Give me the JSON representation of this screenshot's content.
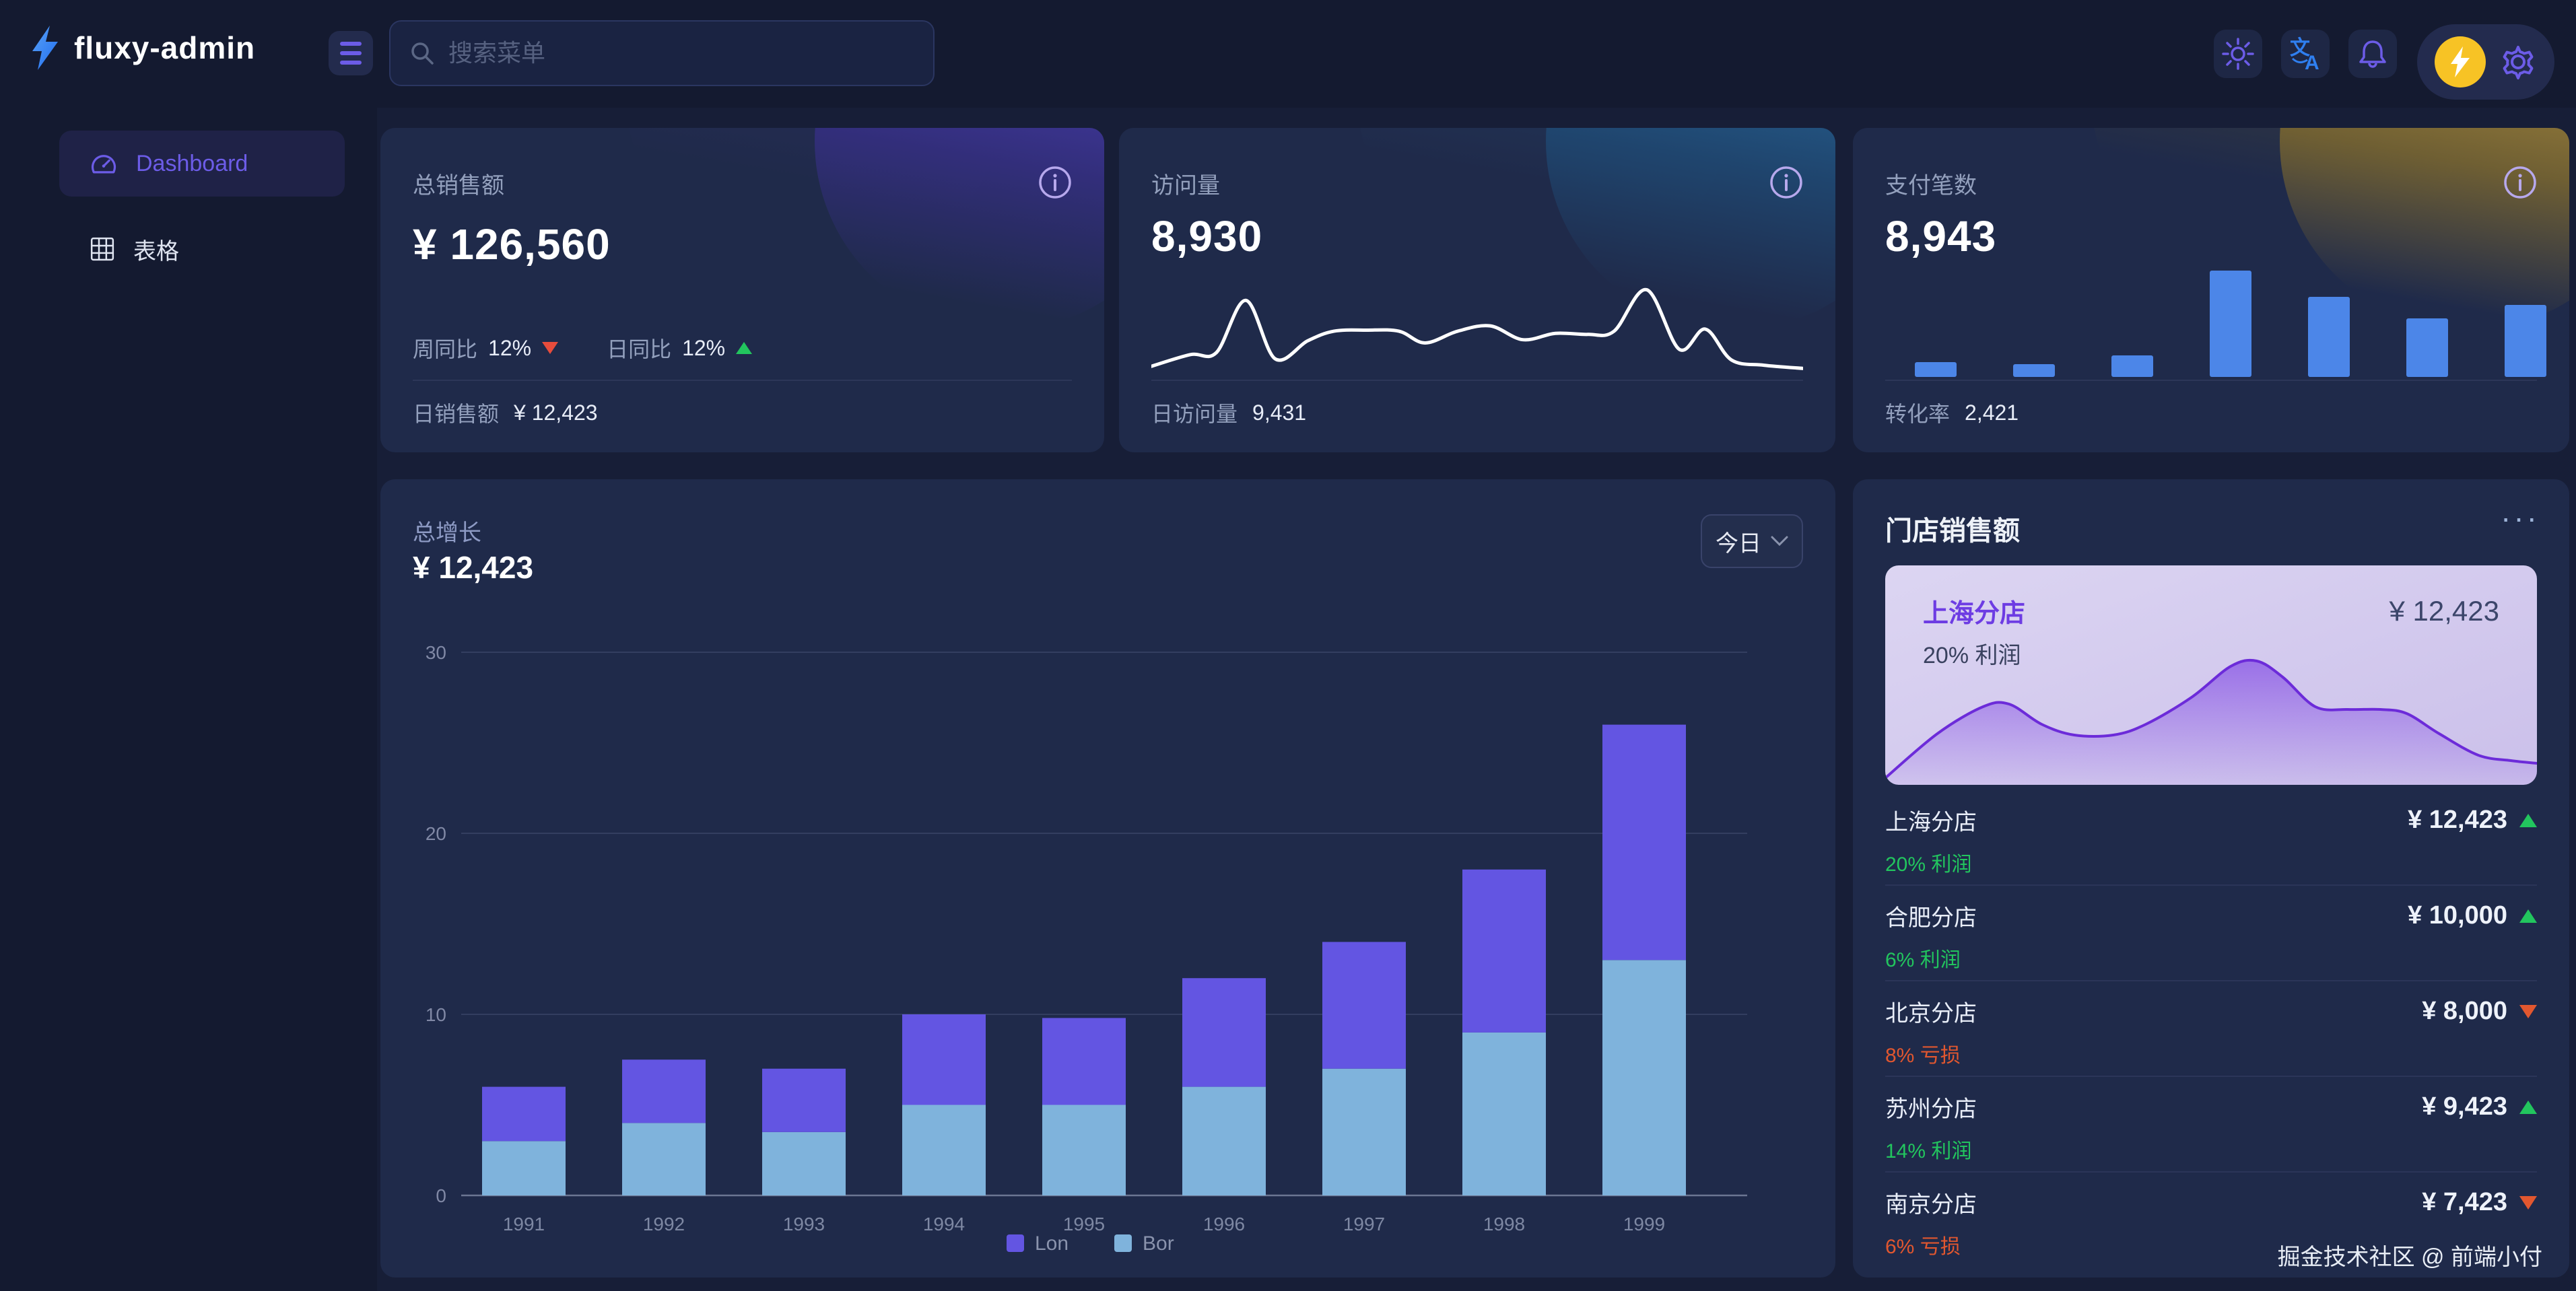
{
  "topbar": {
    "logo": "fluxy-admin",
    "search_placeholder": "搜索菜单"
  },
  "sidebar": {
    "items": [
      {
        "label": "Dashboard",
        "active": true
      },
      {
        "label": "表格",
        "active": false
      }
    ]
  },
  "stats": {
    "sales": {
      "label": "总销售额",
      "value": "¥ 126,560",
      "week_label": "周同比",
      "week_value": "12%",
      "week_trend": "down",
      "day_label": "日同比",
      "day_value": "12%",
      "day_trend": "up",
      "footer_label": "日销售额",
      "footer_value": "¥ 12,423"
    },
    "visits": {
      "label": "访问量",
      "value": "8,930",
      "footer_label": "日访问量",
      "footer_value": "9,431"
    },
    "payments": {
      "label": "支付笔数",
      "value": "8,943",
      "footer_label": "转化率",
      "footer_value": "2,421"
    }
  },
  "growth_chart": {
    "title": "总增长",
    "value": "¥ 12,423",
    "range_label": "今日"
  },
  "stores": {
    "title": "门店销售额",
    "more": "···",
    "highlight": {
      "name": "上海分店",
      "value": "¥ 12,423",
      "pct": "20% 利润"
    },
    "list": [
      {
        "name": "上海分店",
        "value": "¥ 12,423",
        "pct": "20% 利润",
        "trend": "up"
      },
      {
        "name": "合肥分店",
        "value": "¥ 10,000",
        "pct": "6% 利润",
        "trend": "up"
      },
      {
        "name": "北京分店",
        "value": "¥ 8,000",
        "pct": "8% 亏损",
        "trend": "down"
      },
      {
        "name": "苏州分店",
        "value": "¥ 9,423",
        "pct": "14% 利润",
        "trend": "up"
      },
      {
        "name": "南京分店",
        "value": "¥ 7,423",
        "pct": "6% 亏损",
        "trend": "down"
      }
    ]
  },
  "footer": {
    "credit": "掘金技术社区 @ 前端小付"
  },
  "colors": {
    "accent": "#6c5ce7",
    "logo_blue": "#2f7ff0",
    "green": "#22c55e",
    "red_stat": "#e74c3c",
    "red_store": "#e2572f",
    "lon_purple": "#6355e2",
    "bor_blue": "#7fb3dc",
    "mini_bar_blue": "#4c86e8",
    "avatar_yellow": "#f7c325",
    "card_bg": "#1f2a4a",
    "page_bg": "#171e37"
  },
  "chart_data": [
    {
      "id": "growth",
      "type": "bar",
      "stacked": true,
      "title": "总增长",
      "categories": [
        "1991",
        "1992",
        "1993",
        "1994",
        "1995",
        "1996",
        "1997",
        "1998",
        "1999"
      ],
      "series": [
        {
          "name": "Lon",
          "color": "#6355e2",
          "values": [
            3,
            3.5,
            3.5,
            5,
            4.8,
            6,
            7,
            9,
            13
          ]
        },
        {
          "name": "Bor",
          "color": "#7fb3dc",
          "values": [
            3,
            4,
            3.5,
            5,
            5,
            6,
            7,
            9,
            13
          ]
        }
      ],
      "stack_order": [
        "Bor",
        "Lon"
      ],
      "xlabel": "",
      "ylabel": "",
      "ylim": [
        0,
        30
      ],
      "yticks": [
        0,
        10,
        20,
        30
      ],
      "grid": true,
      "legend_position": "bottom"
    },
    {
      "id": "visits-sparkline",
      "type": "line",
      "smooth": true,
      "color": "#ffffff",
      "points_note": "normalized 0-100, y=0 is top",
      "points": [
        [
          0,
          90
        ],
        [
          6,
          79
        ],
        [
          10,
          77
        ],
        [
          14.5,
          28
        ],
        [
          19,
          83
        ],
        [
          24,
          66
        ],
        [
          28,
          57
        ],
        [
          33,
          56
        ],
        [
          38,
          57
        ],
        [
          42,
          68
        ],
        [
          47,
          57
        ],
        [
          52,
          52
        ],
        [
          57,
          65
        ],
        [
          62,
          59
        ],
        [
          67,
          60
        ],
        [
          71,
          57
        ],
        [
          76,
          18
        ],
        [
          81,
          74
        ],
        [
          85,
          55
        ],
        [
          89,
          84
        ],
        [
          94,
          89
        ],
        [
          100,
          92
        ]
      ]
    },
    {
      "id": "payments-bars",
      "type": "bar",
      "color": "#4c86e8",
      "values_note": "relative heights 0-100",
      "values": [
        13,
        11,
        19,
        93,
        70,
        51,
        63
      ]
    },
    {
      "id": "store-area",
      "type": "area",
      "line_color": "#6c2bd9",
      "points_note": "normalized 0-100, y=0 is top",
      "points": [
        [
          0,
          95
        ],
        [
          8,
          62
        ],
        [
          15,
          42
        ],
        [
          19,
          40
        ],
        [
          24,
          55
        ],
        [
          29,
          63
        ],
        [
          35,
          63
        ],
        [
          40,
          55
        ],
        [
          47,
          35
        ],
        [
          53,
          12
        ],
        [
          57,
          8
        ],
        [
          61,
          20
        ],
        [
          66,
          42
        ],
        [
          71,
          44
        ],
        [
          76,
          44
        ],
        [
          80,
          47
        ],
        [
          85,
          62
        ],
        [
          91,
          78
        ],
        [
          96,
          82
        ],
        [
          100,
          84
        ]
      ]
    }
  ]
}
